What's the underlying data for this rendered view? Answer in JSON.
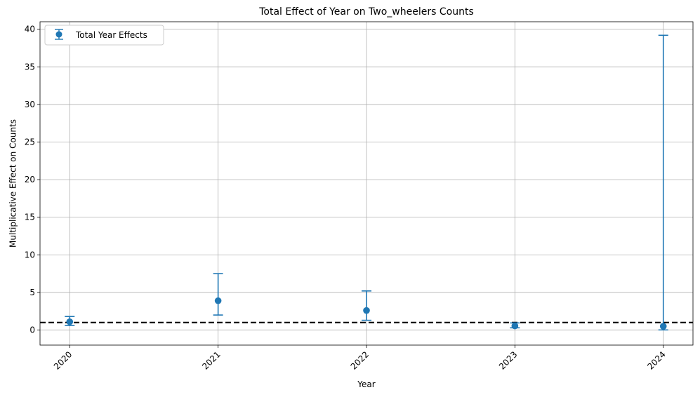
{
  "chart_data": {
    "type": "scatter",
    "title": "Total Effect of Year on Two_wheelers Counts",
    "xlabel": "Year",
    "ylabel": "Multiplicative Effect on Counts",
    "categories": [
      "2020",
      "2021",
      "2022",
      "2023",
      "2024"
    ],
    "series": [
      {
        "name": "Total Year Effects",
        "values": [
          1.1,
          3.9,
          2.6,
          0.55,
          0.5
        ],
        "err_lower": [
          0.6,
          2.0,
          1.3,
          0.3,
          0.02
        ],
        "err_upper": [
          1.8,
          7.5,
          5.2,
          0.95,
          39.2
        ],
        "color": "#1f77b4"
      }
    ],
    "reference_line": {
      "y": 1,
      "style": "dashed",
      "color": "#000000"
    },
    "ylim": [
      -2,
      41
    ],
    "yticks": [
      0,
      5,
      10,
      15,
      20,
      25,
      30,
      35,
      40
    ],
    "grid": true,
    "legend_position": "top-left",
    "xtick_rotation": 45
  }
}
